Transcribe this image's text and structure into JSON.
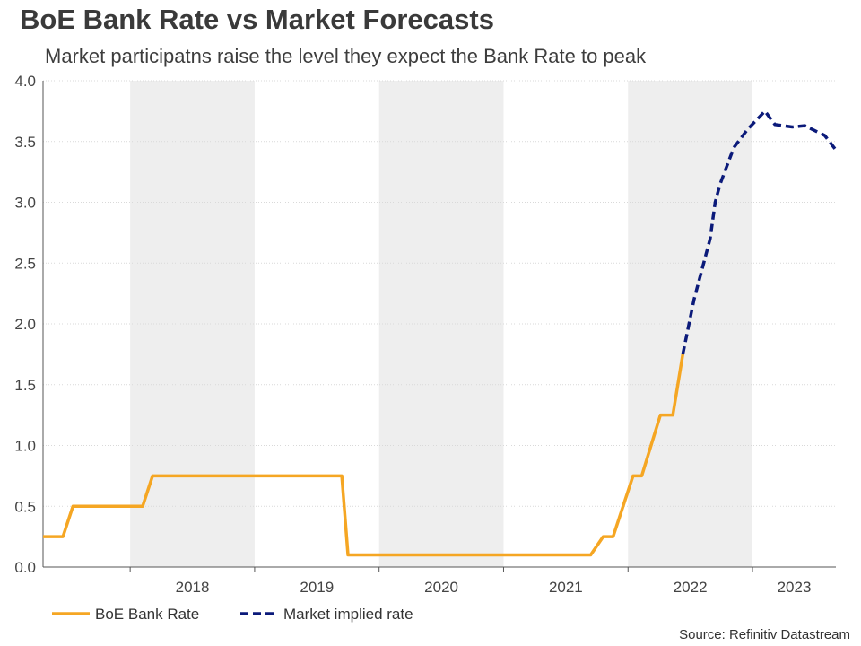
{
  "chart_data": {
    "type": "line",
    "title": "BoE Bank Rate vs Market Forecasts",
    "subtitle": "Market participatns raise the level they expect the Bank Rate to peak",
    "xlabel": "",
    "ylabel": "",
    "ylim": [
      0,
      4.0
    ],
    "yticks": [
      "0.0",
      "0.5",
      "1.0",
      "1.5",
      "2.0",
      "2.5",
      "3.0",
      "3.5",
      "4.0"
    ],
    "xlim": [
      2017.3,
      2023.67
    ],
    "year_labels": [
      "2018",
      "2019",
      "2020",
      "2021",
      "2022",
      "2023"
    ],
    "grid": true,
    "legend_position": "bottom-left",
    "series": [
      {
        "name": "BoE Bank Rate",
        "color": "#f5a623",
        "style": "solid",
        "points": [
          [
            2017.3,
            0.25
          ],
          [
            2017.46,
            0.25
          ],
          [
            2017.54,
            0.5
          ],
          [
            2018.1,
            0.5
          ],
          [
            2018.18,
            0.75
          ],
          [
            2019.7,
            0.75
          ],
          [
            2019.75,
            0.1
          ],
          [
            2021.7,
            0.1
          ],
          [
            2021.8,
            0.25
          ],
          [
            2021.88,
            0.25
          ],
          [
            2022.04,
            0.75
          ],
          [
            2022.11,
            0.75
          ],
          [
            2022.26,
            1.25
          ],
          [
            2022.36,
            1.25
          ],
          [
            2022.44,
            1.75
          ]
        ]
      },
      {
        "name": "Market implied rate",
        "color": "#0b1a7a",
        "style": "dashed",
        "points": [
          [
            2022.44,
            1.75
          ],
          [
            2022.53,
            2.2
          ],
          [
            2022.66,
            2.7
          ],
          [
            2022.7,
            3.0
          ],
          [
            2022.74,
            3.15
          ],
          [
            2022.85,
            3.45
          ],
          [
            2022.96,
            3.6
          ],
          [
            2023.1,
            3.75
          ],
          [
            2023.18,
            3.64
          ],
          [
            2023.32,
            3.62
          ],
          [
            2023.42,
            3.63
          ],
          [
            2023.58,
            3.55
          ],
          [
            2023.67,
            3.43
          ]
        ]
      }
    ]
  },
  "source_text": "Source: Refinitiv Datastream"
}
